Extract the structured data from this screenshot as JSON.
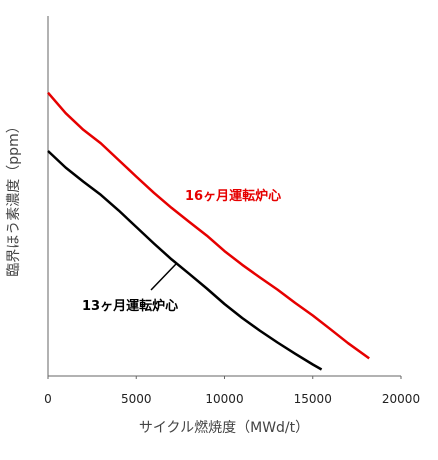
{
  "chart_data": {
    "type": "line",
    "title": "",
    "xlabel": "サイクル燃焼度（MWd/t）",
    "ylabel": "臨界ほう素濃度（ppm）",
    "xlim": [
      0,
      20000
    ],
    "xticks": [
      0,
      5000,
      10000,
      15000,
      20000
    ],
    "grid": false,
    "y_tick_labels_shown": false,
    "series": [
      {
        "name": "16ヶ月運転炉心",
        "color": "#e60000",
        "x": [
          0,
          1000,
          2000,
          3000,
          4000,
          5000,
          6000,
          7000,
          8000,
          9000,
          10000,
          11000,
          12000,
          13000,
          14000,
          15000,
          16000,
          17000,
          18200
        ],
        "y": [
          0.787,
          0.73,
          0.684,
          0.646,
          0.6,
          0.554,
          0.509,
          0.467,
          0.428,
          0.39,
          0.347,
          0.309,
          0.274,
          0.24,
          0.203,
          0.168,
          0.13,
          0.091,
          0.049
        ]
      },
      {
        "name": "13ヶ月運転炉心",
        "color": "#000000",
        "x": [
          0,
          1000,
          2000,
          3000,
          4000,
          5000,
          6000,
          7000,
          8000,
          9000,
          10000,
          11000,
          12000,
          13000,
          14000,
          15000,
          15500
        ],
        "y": [
          0.625,
          0.579,
          0.54,
          0.503,
          0.46,
          0.414,
          0.368,
          0.324,
          0.284,
          0.243,
          0.2,
          0.161,
          0.126,
          0.093,
          0.062,
          0.032,
          0.018
        ]
      }
    ],
    "annotations": [
      {
        "text": "16ヶ月運転炉心",
        "color": "#e60000",
        "near_x": 10000,
        "near_y": 0.5
      },
      {
        "text": "13ヶ月運転炉心",
        "color": "#000000",
        "near_x": 6500,
        "near_y": 0.2
      }
    ]
  }
}
